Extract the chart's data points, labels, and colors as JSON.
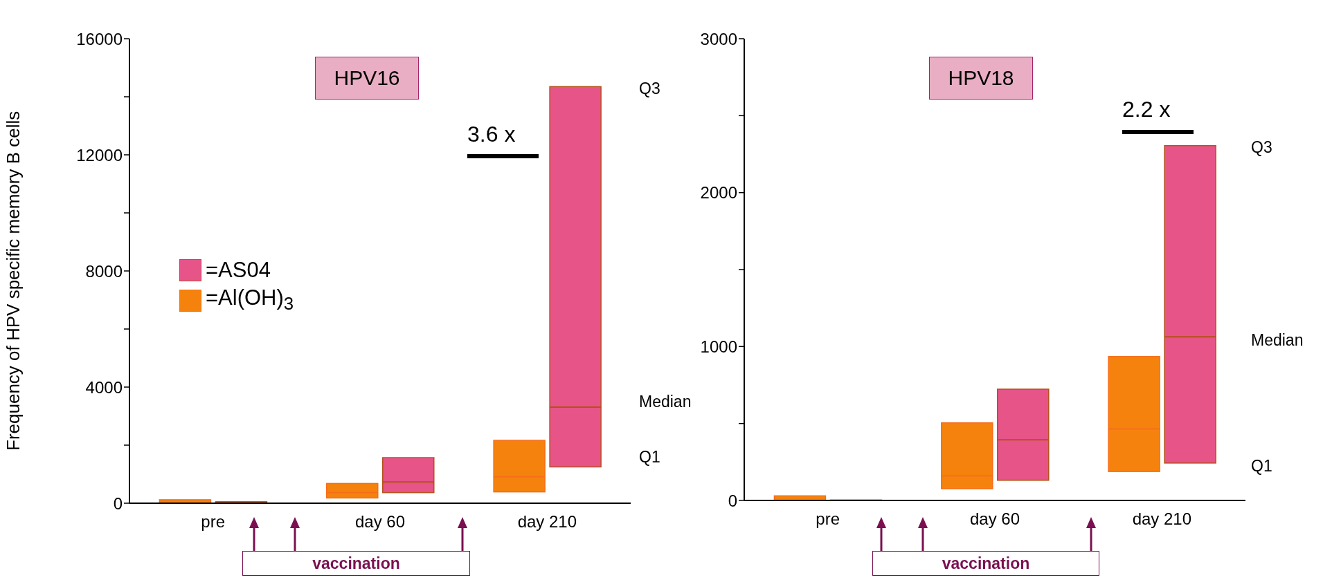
{
  "chart_data": [
    {
      "type": "box",
      "title": "HPV16",
      "ylabel": "Frequency of HPV specific memory B cells",
      "categories": [
        "pre",
        "day 60",
        "day 210"
      ],
      "series": [
        {
          "name": "=Al(OH)$_{3}$",
          "color": "#f5820d",
          "boxes": [
            {
              "low": 0,
              "q1": 0,
              "median": 0,
              "q3": 120,
              "high": 120
            },
            {
              "low": 180,
              "q1": 180,
              "median": 365,
              "q3": 680,
              "high": 680
            },
            {
              "low": 390,
              "q1": 390,
              "median": 910,
              "q3": 2165,
              "high": 2165
            }
          ]
        },
        {
          "name": "=AS04",
          "color": "#e75488",
          "boxes": [
            {
              "low": 20,
              "q1": 20,
              "median": 30,
              "q3": 50,
              "high": 50
            },
            {
              "low": 365,
              "q1": 365,
              "median": 730,
              "q3": 1570,
              "high": 1570
            },
            {
              "low": 1250,
              "q1": 1250,
              "median": 3310,
              "q3": 14350,
              "high": 14350
            }
          ]
        }
      ],
      "ylim": [
        0,
        16000
      ],
      "yticks": [
        0,
        {
          "value": 2000,
          "label": null
        },
        4000,
        {
          "value": 6000,
          "label": null
        },
        8000,
        {
          "value": 10000,
          "label": null
        },
        12000,
        {
          "value": 14000,
          "label": null
        },
        16000
      ],
      "legend": "left",
      "grid": false,
      "annotations": [
        "3.6 x",
        "Q3",
        "Median",
        "Q1",
        "vaccination"
      ]
    },
    {
      "type": "box",
      "title": "HPV18",
      "categories": [
        "pre",
        "day 60",
        "day 210"
      ],
      "series": [
        {
          "color": "#f5820d",
          "boxes": [
            {
              "low": 0,
              "q1": 0,
              "median": 0,
              "q3": 30,
              "high": 30
            },
            {
              "low": 76,
              "q1": 76,
              "median": 159,
              "q3": 504,
              "high": 504
            },
            {
              "low": 188,
              "q1": 188,
              "median": 465,
              "q3": 935,
              "high": 935
            }
          ]
        },
        {
          "color": "#e75488",
          "boxes": [
            {
              "low": 0,
              "q1": 0,
              "median": 0,
              "q3": 3,
              "high": 3
            },
            {
              "low": 131,
              "q1": 131,
              "median": 394,
              "q3": 723,
              "high": 723
            },
            {
              "low": 243,
              "q1": 243,
              "median": 1063,
              "q3": 2305,
              "high": 2305
            }
          ]
        }
      ],
      "ylim": [
        0,
        3000
      ],
      "yticks": [
        0,
        {
          "value": 500,
          "label": null
        },
        1000,
        {
          "value": 1500,
          "label": null
        },
        2000,
        {
          "value": 2500,
          "label": null
        },
        3000
      ],
      "legend": false,
      "grid": false,
      "annotations": [
        "2.2 x",
        "Q3",
        "Median",
        "Q1",
        "vaccination"
      ]
    }
  ]
}
